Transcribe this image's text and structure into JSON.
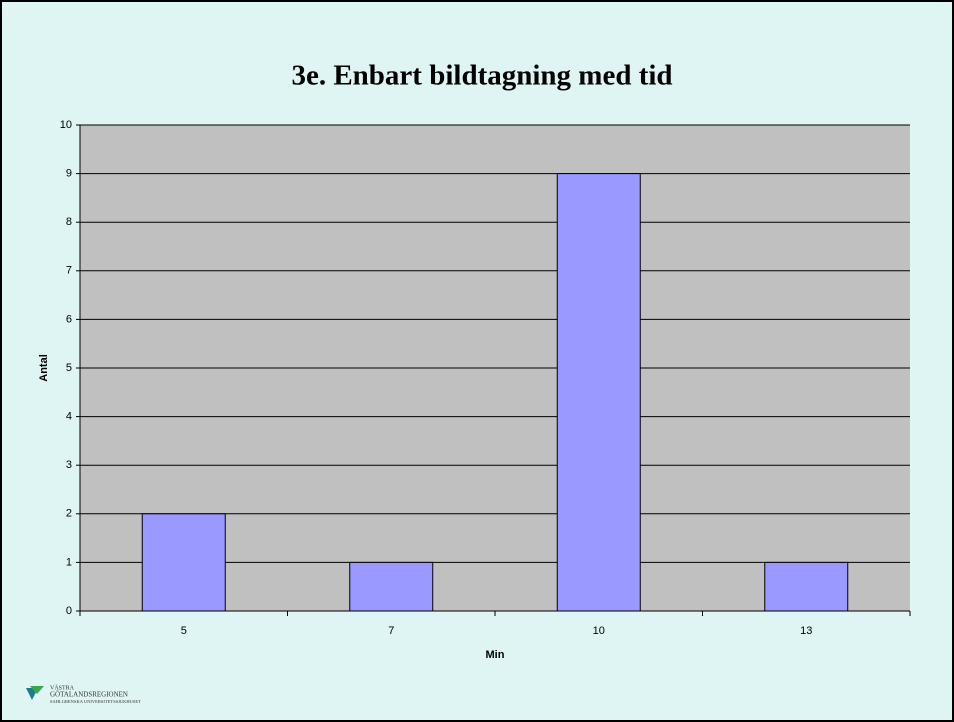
{
  "chart_data": {
    "type": "bar",
    "title": "3e. Enbart bildtagning med tid",
    "categories": [
      "5",
      "7",
      "10",
      "13"
    ],
    "values": [
      2,
      1,
      9,
      1
    ],
    "color": "#9999ff",
    "ylim": [
      0,
      10
    ],
    "yticks": [
      0,
      1,
      2,
      3,
      4,
      5,
      6,
      7,
      8,
      9,
      10
    ],
    "grid": true,
    "xlabel": "Min",
    "ylabel": "Antal"
  },
  "logo": {
    "lines": [
      "VÄSTRA",
      "GÖTALANDSREGIONEN",
      "SAHLGRENSKA UNIVERSITETSSJUKHUSET"
    ]
  }
}
